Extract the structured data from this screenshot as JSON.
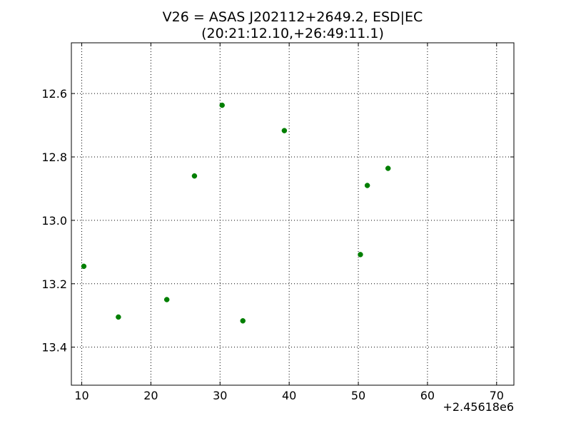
{
  "chart_data": {
    "type": "scatter",
    "title_line1": "V26 = ASAS J202112+2649.2, ESD|EC",
    "title_line2": "(20:21:12.10,+26:49:11.1)",
    "xlabel": "",
    "ylabel": "",
    "x_offset_label": "+2.45618e6",
    "x_offset": 2456180,
    "xlim": [
      8.5,
      72.5
    ],
    "ylim": [
      13.52,
      12.44
    ],
    "y_inverted": true,
    "x_ticks": [
      10,
      20,
      30,
      40,
      50,
      60,
      70
    ],
    "x_tick_labels": [
      "10",
      "20",
      "30",
      "40",
      "50",
      "60",
      "70"
    ],
    "y_ticks": [
      12.6,
      12.8,
      13.0,
      13.2,
      13.4
    ],
    "y_tick_labels": [
      "12.6",
      "12.8",
      "13.0",
      "13.2",
      "13.4"
    ],
    "grid": true,
    "marker_color": "#007f00",
    "points": [
      {
        "x": 10.3,
        "y": 13.145
      },
      {
        "x": 15.3,
        "y": 13.305
      },
      {
        "x": 22.3,
        "y": 13.25
      },
      {
        "x": 26.3,
        "y": 12.86
      },
      {
        "x": 30.3,
        "y": 12.637
      },
      {
        "x": 33.3,
        "y": 13.317
      },
      {
        "x": 39.3,
        "y": 12.717
      },
      {
        "x": 50.3,
        "y": 13.108
      },
      {
        "x": 51.3,
        "y": 12.89
      },
      {
        "x": 54.3,
        "y": 12.836
      }
    ]
  }
}
